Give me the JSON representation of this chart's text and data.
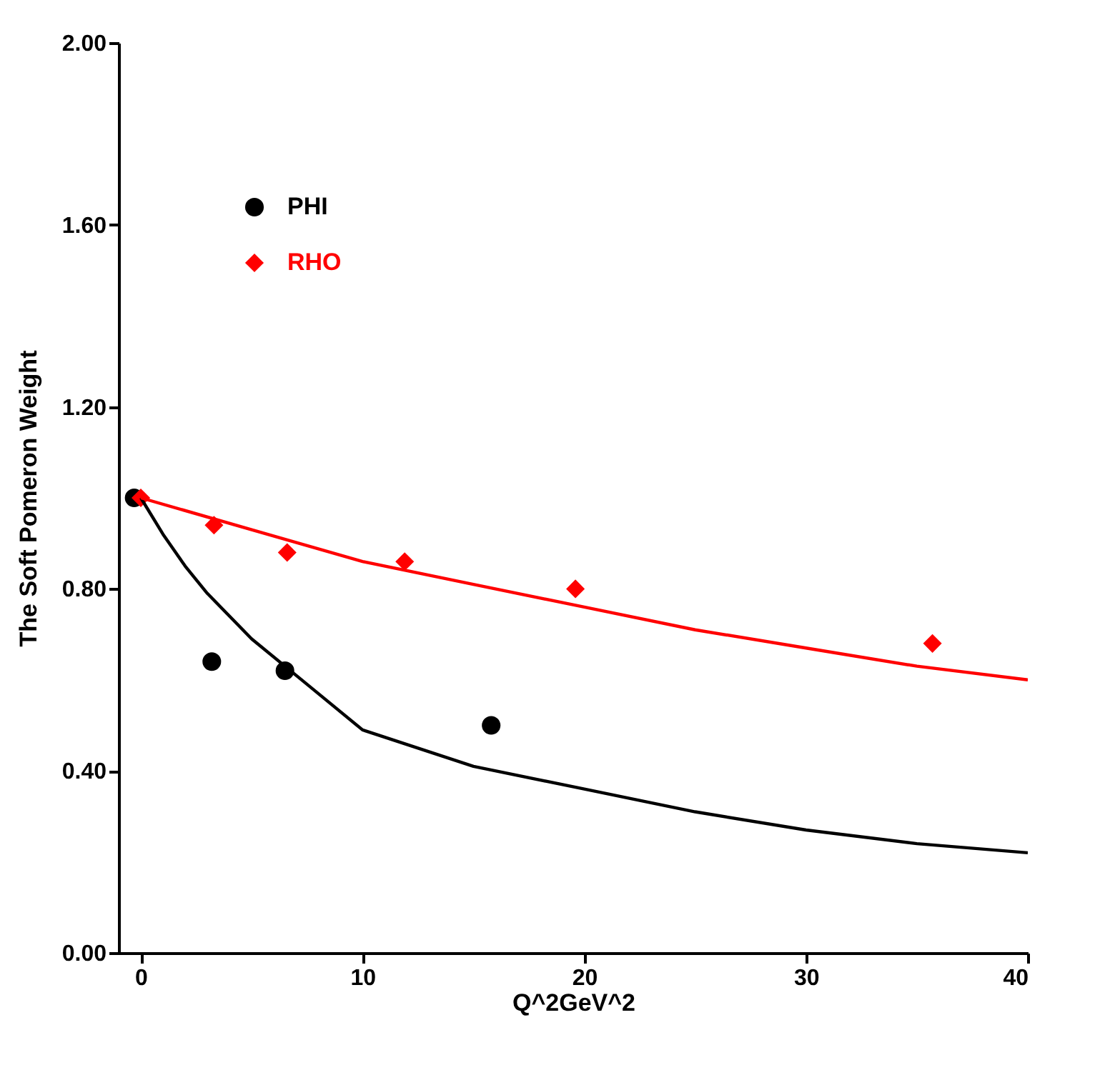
{
  "chart_data": {
    "type": "scatter",
    "xlabel": "Q^2GeV^2",
    "ylabel": "The Soft  Pomeron  Weight",
    "xlim": [
      -1,
      40
    ],
    "xticks": [
      0,
      10,
      20,
      30,
      40
    ],
    "ylim": [
      0,
      2
    ],
    "yticks": [
      {
        "value": 0,
        "label": "0.00"
      },
      {
        "value": 0.4,
        "label": "0.40"
      },
      {
        "value": 0.8,
        "label": "0.80"
      },
      {
        "value": 1.2,
        "label": "1.20"
      },
      {
        "value": 1.6,
        "label": "1.60"
      },
      {
        "value": 2,
        "label": "2.00"
      }
    ],
    "grid": false,
    "legend": "top left",
    "series": [
      {
        "name": "PHI",
        "marker": "circle",
        "color": "#000000",
        "x": [
          -0.3,
          3.2,
          6.5,
          15.8
        ],
        "values": [
          1.0,
          0.64,
          0.62,
          0.5
        ]
      },
      {
        "name": "RHO",
        "marker": "diamond",
        "color": "#ff0000",
        "x": [
          0,
          3.3,
          6.6,
          11.9,
          19.6,
          35.7
        ],
        "values": [
          1.0,
          0.94,
          0.88,
          0.86,
          0.8,
          0.68
        ]
      },
      {
        "type": "line",
        "line_style": "solid",
        "color": "#000000",
        "x": [
          0,
          1,
          2,
          3,
          5,
          7.5,
          10,
          15,
          20,
          25,
          30,
          35,
          40
        ],
        "values": [
          1.0,
          0.92,
          0.85,
          0.79,
          0.69,
          0.59,
          0.49,
          0.41,
          0.36,
          0.31,
          0.27,
          0.24,
          0.22
        ]
      },
      {
        "type": "line",
        "line_style": "solid",
        "color": "#ff0000",
        "x": [
          0,
          5,
          10,
          15,
          20,
          25,
          30,
          35,
          40
        ],
        "values": [
          1.0,
          0.93,
          0.86,
          0.81,
          0.76,
          0.71,
          0.67,
          0.63,
          0.6
        ]
      }
    ]
  }
}
